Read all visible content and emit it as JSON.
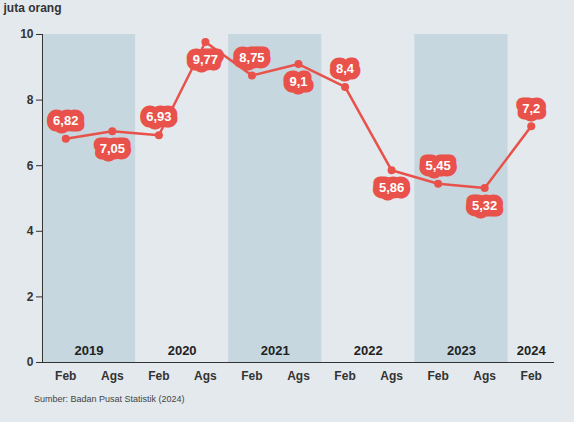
{
  "chart_data": {
    "type": "line",
    "y_label": "juta orang",
    "source": "Sumber: Badan Pusat Statistik (2024)",
    "categories": [
      "Feb",
      "Ags",
      "Feb",
      "Ags",
      "Feb",
      "Ags",
      "Feb",
      "Ags",
      "Feb",
      "Ags",
      "Feb"
    ],
    "years": [
      "2019",
      "2019",
      "2020",
      "2020",
      "2021",
      "2021",
      "2022",
      "2022",
      "2023",
      "2023",
      "2024"
    ],
    "values": [
      6.82,
      7.05,
      6.93,
      9.77,
      8.75,
      9.1,
      8.4,
      5.86,
      5.45,
      5.32,
      7.2
    ],
    "value_labels": [
      "6,82",
      "7,05",
      "6,93",
      "9,77",
      "8,75",
      "9,1",
      "8,4",
      "5,86",
      "5,45",
      "5,32",
      "7,2"
    ],
    "color": "#e8524a",
    "marker": "circle",
    "data_labels": true,
    "grid": false,
    "ylim": [
      0,
      10
    ],
    "yticks": [
      0,
      2,
      4,
      6,
      8,
      10
    ]
  }
}
